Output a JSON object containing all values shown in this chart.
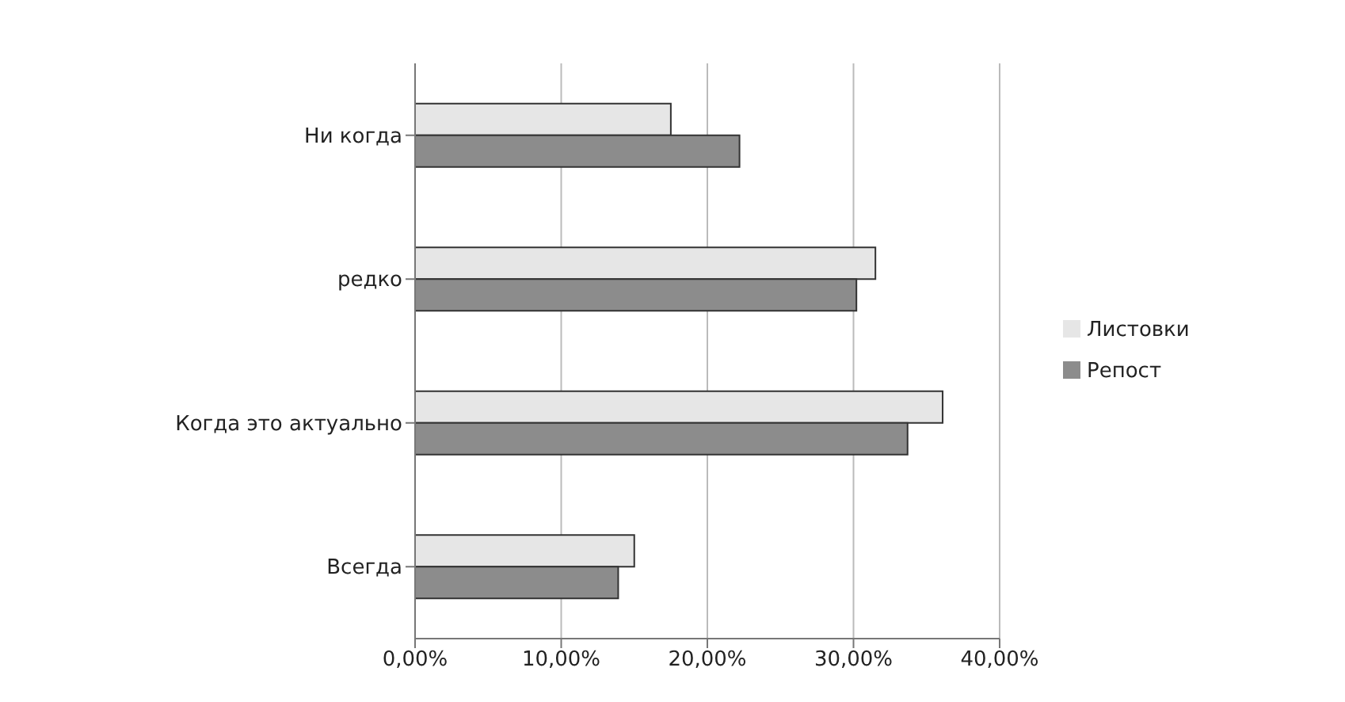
{
  "chart_data": {
    "type": "bar",
    "orientation": "horizontal",
    "categories": [
      "Ни когда",
      "редко",
      "Когда это актуально",
      "Всегда"
    ],
    "series": [
      {
        "name": "Листовки",
        "color": "#e6e6e6",
        "values": [
          17.5,
          31.5,
          36.1,
          15.0
        ]
      },
      {
        "name": "Репост",
        "color": "#8c8c8c",
        "values": [
          22.2,
          30.2,
          33.7,
          13.9
        ]
      }
    ],
    "xlim": [
      0,
      40
    ],
    "xticks": [
      {
        "value": 0,
        "label": "0,00%"
      },
      {
        "value": 10,
        "label": "10,00%"
      },
      {
        "value": 20,
        "label": "20,00%"
      },
      {
        "value": 30,
        "label": "30,00%"
      },
      {
        "value": 40,
        "label": "40,00%"
      }
    ],
    "grid": "x",
    "legend": "right"
  }
}
